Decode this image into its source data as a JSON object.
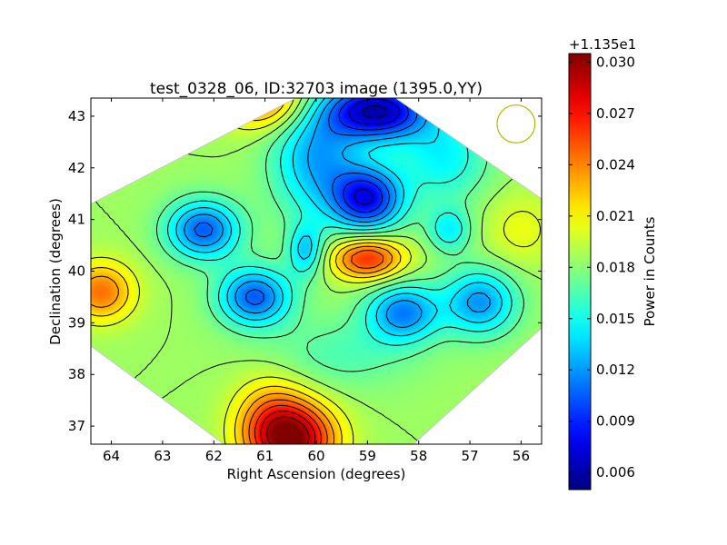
{
  "chart_data": {
    "type": "heatmap",
    "title": "test_0328_06, ID:32703 image (1395.0,YY)",
    "xlabel": "Right Ascension (degrees)",
    "ylabel": "Declination (degrees)",
    "xlim": [
      64.4,
      55.6
    ],
    "ylim": [
      36.65,
      43.35
    ],
    "x_ticks": [
      64,
      63,
      62,
      61,
      60,
      59,
      58,
      57,
      56
    ],
    "y_ticks": [
      37,
      38,
      39,
      40,
      41,
      42,
      43
    ],
    "footprint": [
      [
        60.4,
        43.35
      ],
      [
        64.4,
        41.3
      ],
      [
        64.4,
        38.55
      ],
      [
        61.8,
        36.65
      ],
      [
        58.1,
        36.65
      ],
      [
        55.6,
        38.9
      ],
      [
        55.6,
        41.4
      ],
      [
        58.45,
        43.35
      ]
    ],
    "beam": {
      "ra": 56.1,
      "dec": 42.85,
      "radius_deg": 0.37,
      "color": "#bcb400"
    },
    "colorbar": {
      "label": "Power in Counts",
      "offset_text": "+1.135e1",
      "min": 0.005,
      "max": 0.0305,
      "ticks": [
        "0.006",
        "0.009",
        "0.012",
        "0.015",
        "0.018",
        "0.021",
        "0.024",
        "0.027",
        "0.030"
      ],
      "colormap": "jet"
    },
    "background_level": 0.0185,
    "features": [
      {
        "ra": 60.5,
        "dec": 36.75,
        "amp": 0.012,
        "sx": 0.6,
        "sy": 0.5
      },
      {
        "ra": 60.9,
        "dec": 37.35,
        "amp": 0.003,
        "sx": 0.5,
        "sy": 0.5
      },
      {
        "ra": 61.0,
        "dec": 43.3,
        "amp": 0.006,
        "sx": 0.6,
        "sy": 0.4
      },
      {
        "ra": 64.2,
        "dec": 39.6,
        "amp": 0.006,
        "sx": 0.45,
        "sy": 0.4
      },
      {
        "ra": 59.0,
        "dec": 40.25,
        "amp": 0.008,
        "sx": 0.5,
        "sy": 0.3
      },
      {
        "ra": 58.8,
        "dec": 43.1,
        "amp": -0.012,
        "sx": 0.7,
        "sy": 0.4
      },
      {
        "ra": 59.0,
        "dec": 41.4,
        "amp": -0.01,
        "sx": 0.5,
        "sy": 0.45
      },
      {
        "ra": 62.2,
        "dec": 40.8,
        "amp": -0.008,
        "sx": 0.5,
        "sy": 0.4
      },
      {
        "ra": 61.2,
        "dec": 39.5,
        "amp": -0.008,
        "sx": 0.5,
        "sy": 0.4
      },
      {
        "ra": 58.3,
        "dec": 39.2,
        "amp": -0.007,
        "sx": 0.5,
        "sy": 0.4
      },
      {
        "ra": 56.8,
        "dec": 39.4,
        "amp": -0.0065,
        "sx": 0.5,
        "sy": 0.45
      },
      {
        "ra": 57.4,
        "dec": 40.8,
        "amp": -0.004,
        "sx": 0.3,
        "sy": 0.3
      },
      {
        "ra": 60.2,
        "dec": 40.4,
        "amp": -0.005,
        "sx": 0.25,
        "sy": 0.35
      },
      {
        "ra": 60.0,
        "dec": 42.2,
        "amp": -0.006,
        "sx": 0.6,
        "sy": 0.8
      },
      {
        "ra": 57.5,
        "dec": 42.2,
        "amp": -0.004,
        "sx": 0.6,
        "sy": 0.6
      },
      {
        "ra": 59.5,
        "dec": 38.4,
        "amp": -0.002,
        "sx": 1.0,
        "sy": 0.5
      },
      {
        "ra": 56.0,
        "dec": 40.8,
        "amp": 0.002,
        "sx": 0.5,
        "sy": 0.5
      }
    ]
  }
}
